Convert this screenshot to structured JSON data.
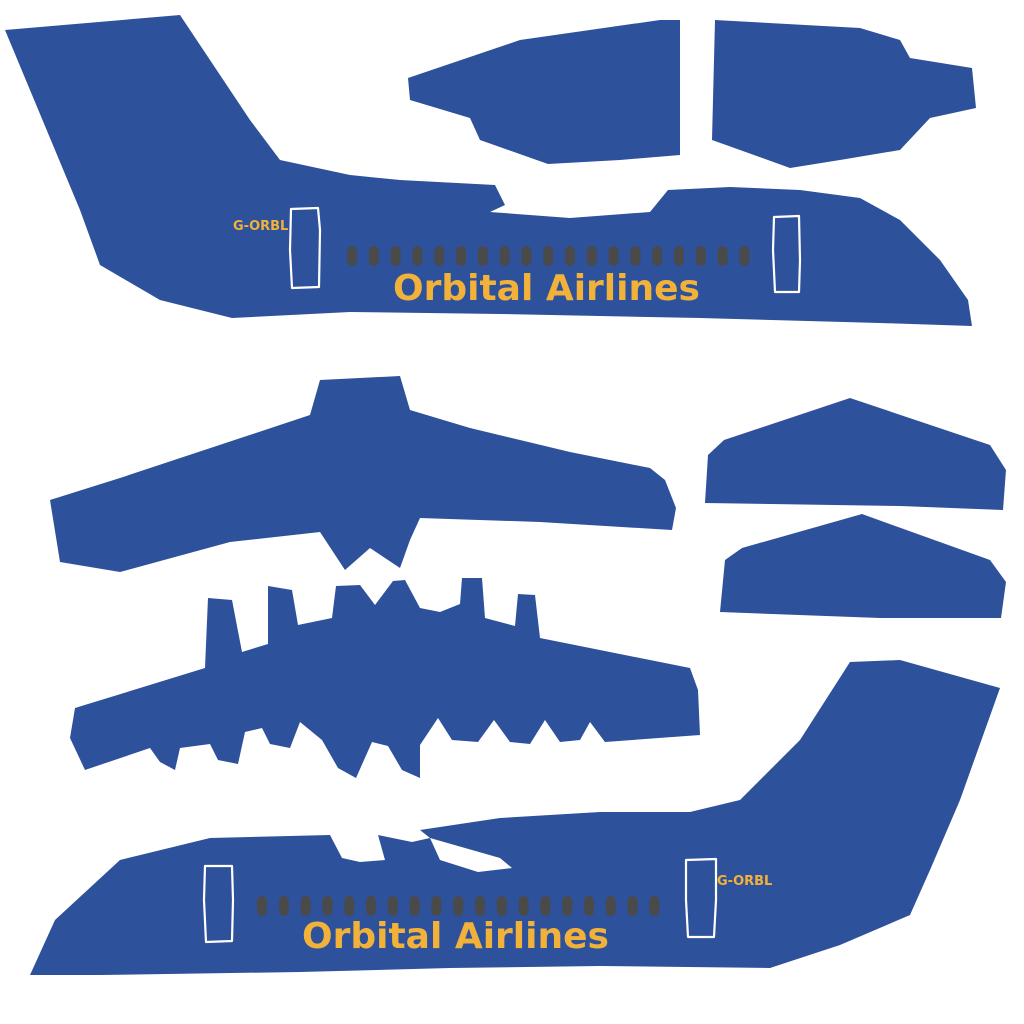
{
  "texture": {
    "airline_name": "Orbital Airlines",
    "registration": "G-ORBL",
    "colors": {
      "livery_blue": "#2e519b",
      "text_gold": "#f2b23a",
      "window_grey": "#4a4a4a",
      "door_outline": "#ffffff",
      "background": "#ffffff"
    }
  },
  "fuselage_left": {
    "title": "Orbital Airlines",
    "registration": "G-ORBL",
    "window_count": 19
  },
  "fuselage_right": {
    "title": "Orbital Airlines",
    "registration": "G-ORBL",
    "window_count": 19
  }
}
